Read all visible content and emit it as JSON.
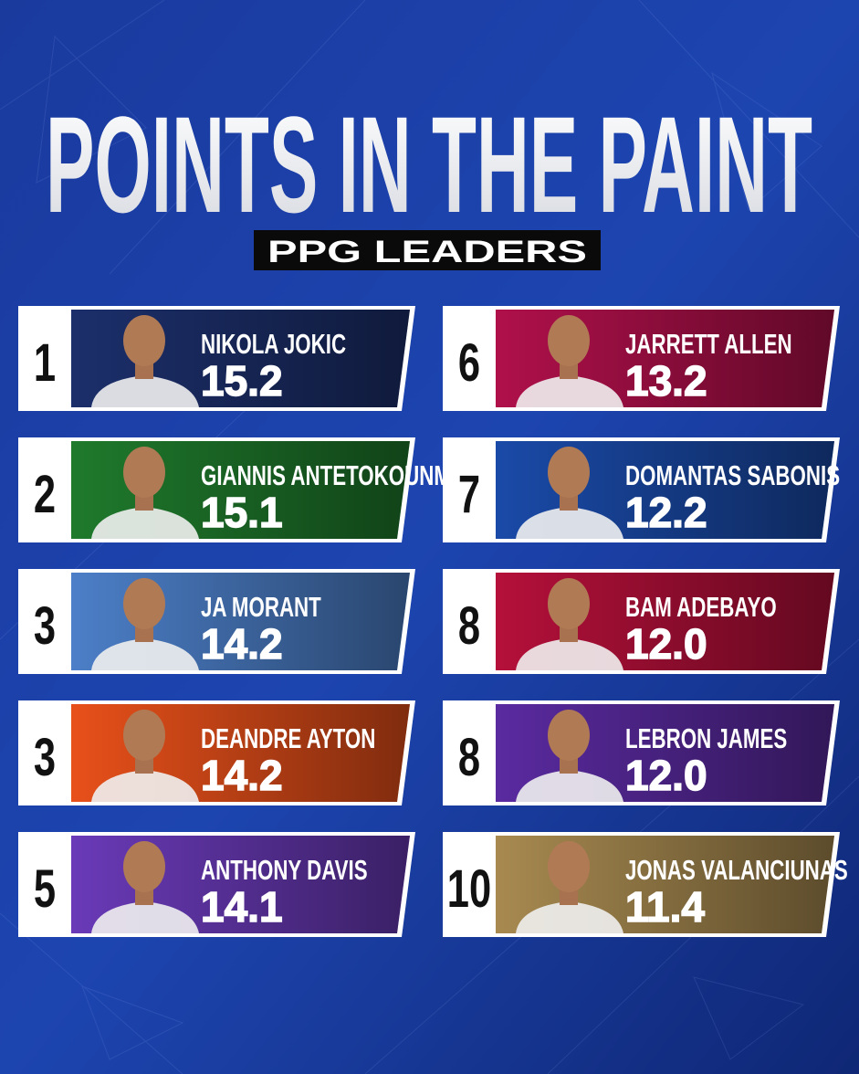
{
  "header": {
    "title": "POINTS IN THE PAINT",
    "subtitle": "PPG LEADERS"
  },
  "players": [
    {
      "rank": "1",
      "name": "NIKOLA JOKIC",
      "ppg": "15.2",
      "color": "#1c2f6b"
    },
    {
      "rank": "2",
      "name": "GIANNIS ANTETOKOUNMPO",
      "ppg": "15.1",
      "color": "#1f7a2c"
    },
    {
      "rank": "3",
      "name": "JA MORANT",
      "ppg": "14.2",
      "color": "#4c7fc8"
    },
    {
      "rank": "3",
      "name": "DEANDRE AYTON",
      "ppg": "14.2",
      "color": "#e8501a"
    },
    {
      "rank": "5",
      "name": "ANTHONY DAVIS",
      "ppg": "14.1",
      "color": "#6a3ab8"
    },
    {
      "rank": "6",
      "name": "JARRETT ALLEN",
      "ppg": "13.2",
      "color": "#b0104a"
    },
    {
      "rank": "7",
      "name": "DOMANTAS SABONIS",
      "ppg": "12.2",
      "color": "#1a4aa8"
    },
    {
      "rank": "8",
      "name": "BAM ADEBAYO",
      "ppg": "12.0",
      "color": "#b5103a"
    },
    {
      "rank": "8",
      "name": "LEBRON JAMES",
      "ppg": "12.0",
      "color": "#5a2aa0"
    },
    {
      "rank": "10",
      "name": "JONAS VALANCIUNAS",
      "ppg": "11.4",
      "color": "#a88a50"
    }
  ]
}
